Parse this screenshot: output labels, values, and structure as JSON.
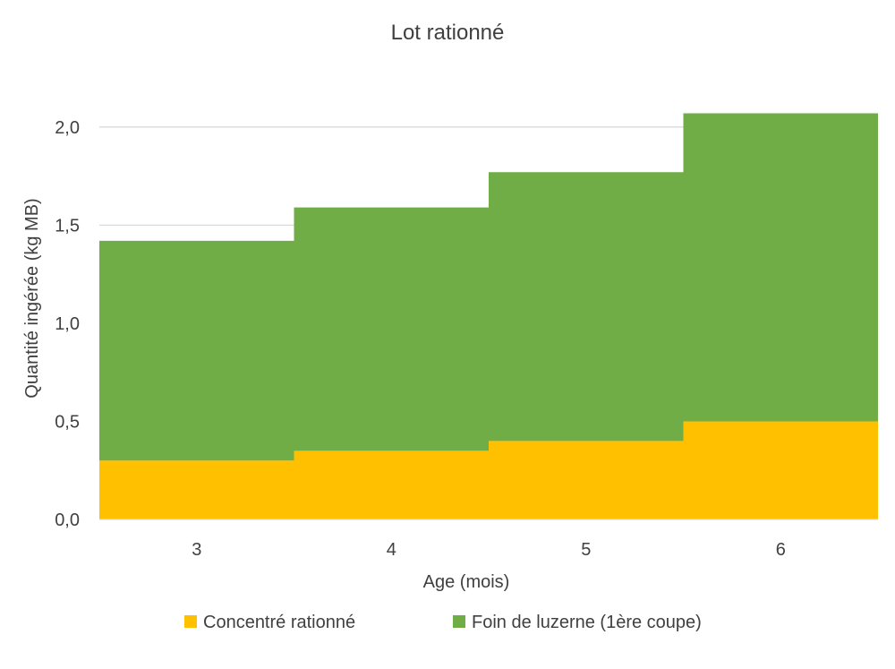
{
  "chart_data": {
    "type": "area",
    "title": "Lot rationné",
    "xlabel": "Age (mois)",
    "ylabel": "Quantité ingérée (kg MB)",
    "categories": [
      "3",
      "4",
      "5",
      "6"
    ],
    "series": [
      {
        "name": "Concentré rationné",
        "values": [
          0.3,
          0.35,
          0.4,
          0.5
        ],
        "color": "#ffc000"
      },
      {
        "name": "Foin de luzerne (1ère coupe)",
        "values": [
          1.12,
          1.24,
          1.37,
          1.57
        ],
        "color": "#70ad47"
      }
    ],
    "stacked": true,
    "step": true,
    "ylim": [
      0,
      2.2
    ],
    "yticks": [
      "0,0",
      "0,5",
      "1,0",
      "1,5",
      "2,0"
    ],
    "ytick_values": [
      0,
      0.5,
      1.0,
      1.5,
      2.0
    ],
    "grid": true,
    "legend_position": "bottom"
  }
}
